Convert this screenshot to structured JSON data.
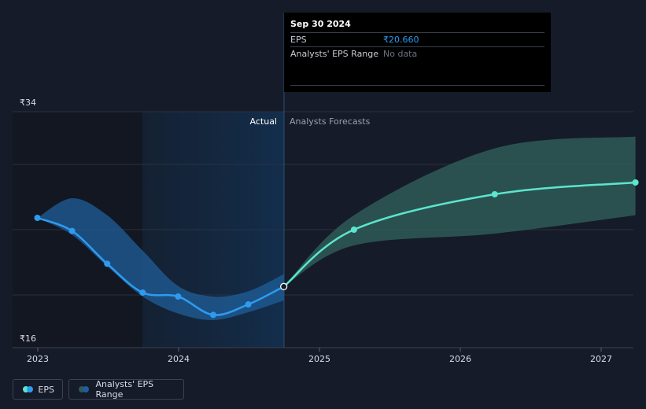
{
  "chart_data": {
    "type": "line",
    "ylim": [
      16,
      34
    ],
    "y_tick_labels": [
      "₹34",
      "₹16"
    ],
    "x_tick_labels": [
      "2023",
      "2024",
      "2025",
      "2026",
      "2027"
    ],
    "region_labels": {
      "actual": "Actual",
      "forecast": "Analysts Forecasts"
    },
    "series": [
      {
        "name": "EPS",
        "points": [
          {
            "x": "2022-12-31",
            "y": 25.9
          },
          {
            "x": "2023-03-31",
            "y": 24.9
          },
          {
            "x": "2023-06-30",
            "y": 22.4
          },
          {
            "x": "2023-09-30",
            "y": 20.2
          },
          {
            "x": "2023-12-31",
            "y": 19.9
          },
          {
            "x": "2024-03-31",
            "y": 18.5
          },
          {
            "x": "2024-06-30",
            "y": 19.3
          },
          {
            "x": "2024-09-30",
            "y": 20.66
          }
        ]
      },
      {
        "name": "EPS Forecast",
        "points": [
          {
            "x": "2024-09-30",
            "y": 20.66
          },
          {
            "x": "2025-03-31",
            "y": 25.0
          },
          {
            "x": "2026-03-31",
            "y": 27.7
          },
          {
            "x": "2027-03-31",
            "y": 28.6
          }
        ]
      }
    ],
    "range_actual": [
      {
        "x": "2022-12-31",
        "low": 25.9,
        "high": 25.9
      },
      {
        "x": "2023-03-31",
        "low": 24.6,
        "high": 27.4
      },
      {
        "x": "2023-06-30",
        "low": 22.2,
        "high": 26.1
      },
      {
        "x": "2023-09-30",
        "low": 19.9,
        "high": 23.4
      },
      {
        "x": "2023-12-31",
        "low": 18.6,
        "high": 20.7
      },
      {
        "x": "2024-03-31",
        "low": 18.1,
        "high": 19.9
      },
      {
        "x": "2024-06-30",
        "low": 18.7,
        "high": 20.3
      },
      {
        "x": "2024-09-30",
        "low": 19.6,
        "high": 21.6
      }
    ],
    "range_forecast": [
      {
        "x": "2024-09-30",
        "low": 20.66,
        "high": 20.66
      },
      {
        "x": "2025-03-31",
        "low": 23.8,
        "high": 26.1
      },
      {
        "x": "2026-03-31",
        "low": 24.7,
        "high": 31.2
      },
      {
        "x": "2027-03-31",
        "low": 26.1,
        "high": 32.1
      }
    ],
    "colors": {
      "eps": "#2e9bf0",
      "forecast": "#5ce5cf",
      "range_actual": "#1f5f99",
      "range_forecast": "#2e5a57"
    }
  },
  "tooltip": {
    "date": "Sep 30 2024",
    "eps_label": "EPS",
    "eps_value": "₹20.660",
    "range_label": "Analysts' EPS Range",
    "range_value": "No data"
  },
  "legend": {
    "eps": "EPS",
    "range": "Analysts' EPS Range"
  }
}
